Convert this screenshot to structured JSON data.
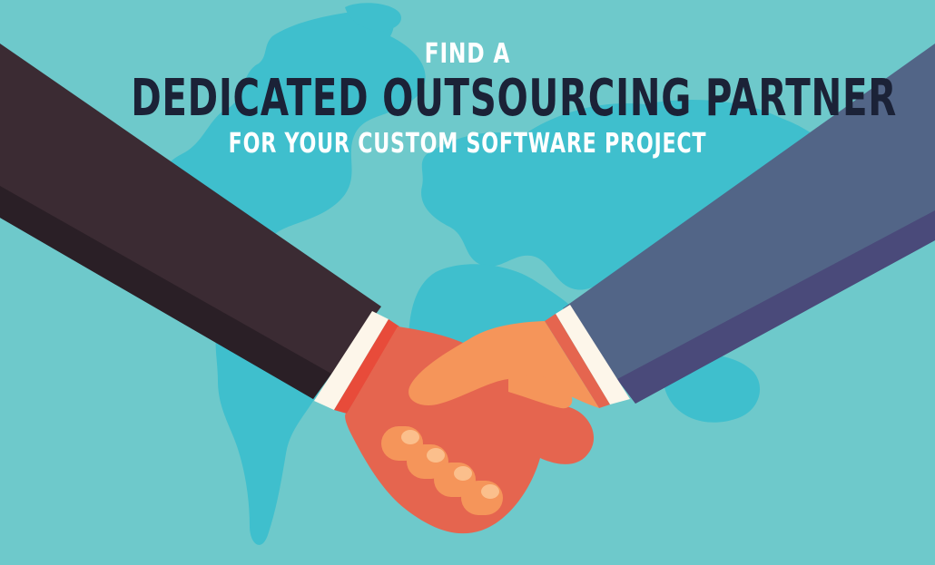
{
  "headline": {
    "line1": "FIND A",
    "line2": "DEDICATED OUTSOURCING PARTNER",
    "line3": "FOR YOUR CUSTOM SOFTWARE PROJECT"
  },
  "colors": {
    "background": "#6ec9cb",
    "map": "#3fbfcd",
    "map_shadow": "#36aebd",
    "left_sleeve": "#3b2b33",
    "left_sleeve_shadow": "#2a1f26",
    "right_sleeve": "#526587",
    "right_sleeve_shadow": "#4a4a7a",
    "cuff": "#fdf6ea",
    "left_hand": "#e5654f",
    "right_hand": "#f5955a",
    "accent_red": "#e84b3a",
    "title_dark": "#1b2237",
    "title_light": "#ffffff"
  }
}
